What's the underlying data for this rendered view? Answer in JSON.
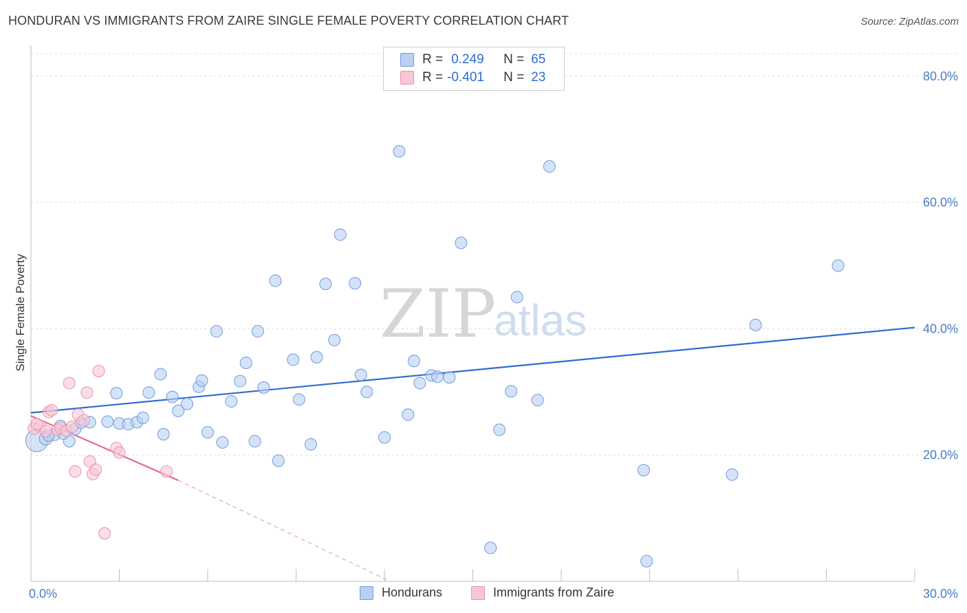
{
  "title": "HONDURAN VS IMMIGRANTS FROM ZAIRE SINGLE FEMALE POVERTY CORRELATION CHART",
  "source": "Source: ZipAtlas.com",
  "watermark": {
    "zip": "ZIP",
    "atlas": "atlas"
  },
  "legend": {
    "rows": [
      {
        "r_label": "R =",
        "r_value": "0.249",
        "n_label": "N =",
        "n_value": "65",
        "fill": "#b8d0f2",
        "stroke": "#6f9bdc"
      },
      {
        "r_label": "R =",
        "r_value": "-0.401",
        "n_label": "N =",
        "n_value": "23",
        "fill": "#f8c6d6",
        "stroke": "#e792ae"
      }
    ]
  },
  "bottom_legend": [
    "Hondurans",
    "Immigrants from Zaire"
  ],
  "chart_data": {
    "type": "scatter",
    "title": "HONDURAN VS IMMIGRANTS FROM ZAIRE SINGLE FEMALE POVERTY CORRELATION CHART",
    "xlabel": "",
    "ylabel": "Single Female Poverty",
    "xlim": [
      0,
      30
    ],
    "ylim": [
      0,
      84
    ],
    "x_tick_labels": [
      "0.0%",
      "30.0%"
    ],
    "y_ticks": [
      20,
      40,
      60,
      80
    ],
    "y_tick_labels": [
      "20.0%",
      "40.0%",
      "60.0%",
      "80.0%"
    ],
    "grid": true,
    "series": [
      {
        "name": "Hondurans",
        "color": "#6f9bdc",
        "fill": "#b8d0f2",
        "points": [
          [
            0.2,
            22.3,
            1.9
          ],
          [
            0.5,
            22.6,
            1.1
          ],
          [
            0.8,
            23.2,
            1
          ],
          [
            1.0,
            24.6,
            1
          ],
          [
            1.3,
            22.2,
            1
          ],
          [
            1.5,
            24.1,
            1
          ],
          [
            1.7,
            25.1,
            1
          ],
          [
            2.0,
            25.2,
            1
          ],
          [
            2.6,
            25.3,
            1
          ],
          [
            2.9,
            29.8,
            1
          ],
          [
            3.0,
            25.0,
            1
          ],
          [
            3.3,
            24.9,
            1
          ],
          [
            3.6,
            25.2,
            1
          ],
          [
            3.8,
            25.9,
            1
          ],
          [
            4.0,
            29.9,
            1
          ],
          [
            4.4,
            32.8,
            1
          ],
          [
            4.5,
            23.3,
            1
          ],
          [
            4.8,
            29.2,
            1
          ],
          [
            5.0,
            27.0,
            1
          ],
          [
            5.3,
            28.1,
            1
          ],
          [
            5.7,
            30.8,
            1
          ],
          [
            5.8,
            31.8,
            1
          ],
          [
            6.0,
            23.6,
            1
          ],
          [
            6.3,
            39.6,
            1
          ],
          [
            6.5,
            22.0,
            1
          ],
          [
            6.8,
            28.5,
            1
          ],
          [
            7.1,
            31.7,
            1
          ],
          [
            7.3,
            34.6,
            1
          ],
          [
            7.6,
            22.2,
            1
          ],
          [
            7.7,
            39.6,
            1
          ],
          [
            7.9,
            30.7,
            1
          ],
          [
            8.3,
            47.6,
            1
          ],
          [
            8.4,
            19.1,
            1
          ],
          [
            8.9,
            35.1,
            1
          ],
          [
            9.1,
            28.8,
            1
          ],
          [
            9.5,
            21.7,
            1
          ],
          [
            9.7,
            35.5,
            1
          ],
          [
            10.0,
            47.1,
            1
          ],
          [
            10.3,
            38.2,
            1
          ],
          [
            10.5,
            54.9,
            1
          ],
          [
            11.0,
            47.2,
            1
          ],
          [
            11.2,
            32.7,
            1
          ],
          [
            11.4,
            30.0,
            1
          ],
          [
            12.0,
            22.8,
            1
          ],
          [
            12.5,
            68.1,
            1
          ],
          [
            12.8,
            26.4,
            1
          ],
          [
            13.0,
            34.9,
            1
          ],
          [
            13.2,
            31.4,
            1
          ],
          [
            13.6,
            32.6,
            1
          ],
          [
            13.8,
            32.4,
            1
          ],
          [
            14.2,
            32.3,
            1
          ],
          [
            14.6,
            53.6,
            1
          ],
          [
            15.6,
            5.3,
            1
          ],
          [
            15.9,
            24.0,
            1
          ],
          [
            16.3,
            30.1,
            1
          ],
          [
            16.5,
            45.0,
            1
          ],
          [
            17.2,
            28.7,
            1
          ],
          [
            17.6,
            65.7,
            1
          ],
          [
            20.8,
            17.6,
            1
          ],
          [
            20.9,
            3.2,
            1
          ],
          [
            23.8,
            16.9,
            1
          ],
          [
            24.6,
            40.6,
            1
          ],
          [
            27.4,
            50.0,
            1
          ],
          [
            0.6,
            23.1,
            1
          ],
          [
            1.1,
            23.4,
            1
          ]
        ],
        "trend": {
          "x": [
            0,
            30
          ],
          "y": [
            26.7,
            40.2
          ]
        }
      },
      {
        "name": "Immigrants from Zaire",
        "color": "#e792ae",
        "fill": "#f8c6d6",
        "points": [
          [
            0.1,
            24.2,
            1
          ],
          [
            0.3,
            24.6,
            1
          ],
          [
            0.5,
            23.8,
            1
          ],
          [
            0.6,
            26.8,
            1
          ],
          [
            0.7,
            27.1,
            1
          ],
          [
            0.9,
            24.0,
            1
          ],
          [
            1.0,
            24.3,
            1
          ],
          [
            1.2,
            23.9,
            1
          ],
          [
            1.3,
            31.4,
            1
          ],
          [
            1.4,
            24.5,
            1
          ],
          [
            1.5,
            17.4,
            1
          ],
          [
            1.6,
            26.4,
            1
          ],
          [
            1.8,
            25.5,
            1
          ],
          [
            1.9,
            29.9,
            1
          ],
          [
            2.0,
            19.0,
            1
          ],
          [
            2.1,
            17.0,
            1
          ],
          [
            2.2,
            17.7,
            1
          ],
          [
            2.3,
            33.3,
            1
          ],
          [
            2.5,
            7.6,
            1
          ],
          [
            2.9,
            21.1,
            1
          ],
          [
            3.0,
            20.4,
            1
          ],
          [
            4.6,
            17.4,
            1
          ],
          [
            0.2,
            24.9,
            1
          ]
        ],
        "trend": {
          "x": [
            0,
            5.0
          ],
          "y": [
            26.2,
            16.0
          ]
        },
        "trend_dashed": {
          "x": [
            5.0,
            12.2
          ],
          "y": [
            16.0,
            0
          ]
        }
      }
    ]
  }
}
